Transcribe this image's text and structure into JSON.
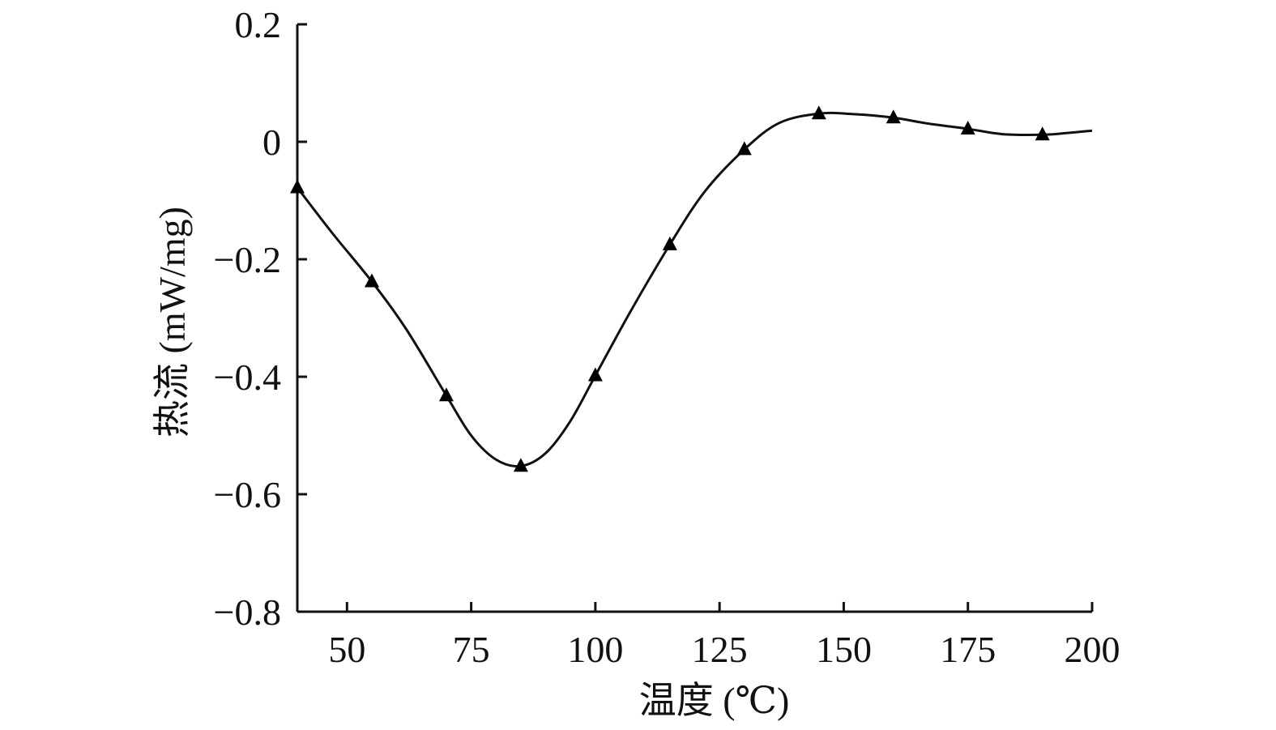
{
  "chart_data": {
    "type": "line",
    "xlabel": "温度 (℃)",
    "ylabel": "热流 (mW/mg)",
    "xlim": [
      40,
      200
    ],
    "ylim": [
      -0.8,
      0.2
    ],
    "x_ticks": [
      50,
      75,
      100,
      125,
      150,
      175,
      200
    ],
    "x_tick_labels": [
      "50",
      "75",
      "100",
      "125",
      "150",
      "175",
      "200"
    ],
    "y_ticks": [
      0.2,
      0,
      -0.2,
      -0.4,
      -0.6,
      -0.8
    ],
    "y_tick_labels": [
      "0.2",
      "0",
      "−0.2",
      "−0.4",
      "−0.6",
      "−0.8"
    ],
    "grid": false,
    "legend": "none",
    "series": [
      {
        "marker": "triangle",
        "color": "#000000",
        "curve": [
          {
            "x": 40,
            "y": -0.078
          },
          {
            "x": 47,
            "y": -0.155
          },
          {
            "x": 55,
            "y": -0.238
          },
          {
            "x": 62,
            "y": -0.32
          },
          {
            "x": 70,
            "y": -0.432
          },
          {
            "x": 75,
            "y": -0.5
          },
          {
            "x": 80,
            "y": -0.541
          },
          {
            "x": 85,
            "y": -0.552
          },
          {
            "x": 90,
            "y": -0.53
          },
          {
            "x": 95,
            "y": -0.475
          },
          {
            "x": 100,
            "y": -0.398
          },
          {
            "x": 107,
            "y": -0.29
          },
          {
            "x": 115,
            "y": -0.175
          },
          {
            "x": 122,
            "y": -0.085
          },
          {
            "x": 130,
            "y": -0.013
          },
          {
            "x": 137,
            "y": 0.032
          },
          {
            "x": 145,
            "y": 0.048
          },
          {
            "x": 152,
            "y": 0.047
          },
          {
            "x": 160,
            "y": 0.041
          },
          {
            "x": 167,
            "y": 0.031
          },
          {
            "x": 175,
            "y": 0.022
          },
          {
            "x": 182,
            "y": 0.013
          },
          {
            "x": 190,
            "y": 0.012
          },
          {
            "x": 195,
            "y": 0.015
          },
          {
            "x": 200,
            "y": 0.019
          }
        ],
        "points": [
          {
            "x": 40,
            "y": -0.078
          },
          {
            "x": 55,
            "y": -0.238
          },
          {
            "x": 70,
            "y": -0.432
          },
          {
            "x": 85,
            "y": -0.552
          },
          {
            "x": 100,
            "y": -0.398
          },
          {
            "x": 115,
            "y": -0.175
          },
          {
            "x": 130,
            "y": -0.013
          },
          {
            "x": 145,
            "y": 0.048
          },
          {
            "x": 160,
            "y": 0.041
          },
          {
            "x": 175,
            "y": 0.022
          },
          {
            "x": 190,
            "y": 0.012
          }
        ]
      }
    ]
  }
}
